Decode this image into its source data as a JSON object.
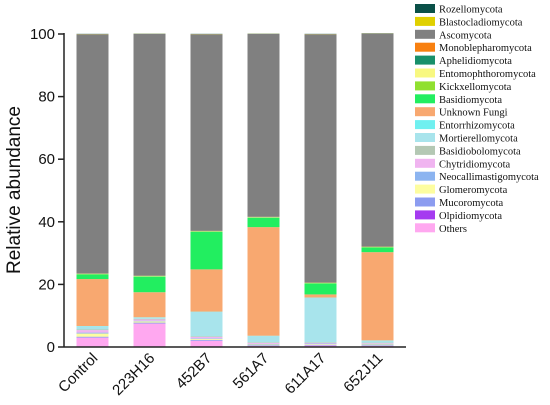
{
  "chart_data": {
    "type": "bar",
    "stacked": true,
    "ylabel": "Relative abundance",
    "xlabel": "",
    "ylim": [
      0,
      100
    ],
    "yticks": [
      0,
      20,
      40,
      60,
      80,
      100
    ],
    "categories": [
      "Control",
      "223H16",
      "452B7",
      "561A7",
      "611A17",
      "652J11"
    ],
    "legend_position": "right",
    "series": [
      {
        "name": "Others",
        "color": "#FFA8F0",
        "values": [
          3.0,
          7.5,
          2.0,
          0.4,
          0.5,
          0.4
        ]
      },
      {
        "name": "Olpidiomycota",
        "color": "#A53BF0",
        "values": [
          0,
          0,
          0,
          0,
          0,
          0
        ]
      },
      {
        "name": "Mucoromycota",
        "color": "#8C9CF0",
        "values": [
          0.3,
          0.3,
          0.3,
          0.2,
          0.2,
          0.2
        ]
      },
      {
        "name": "Glomeromycota",
        "color": "#FDFDA0",
        "values": [
          1.0,
          0.4,
          0.3,
          0.2,
          0.2,
          0.2
        ]
      },
      {
        "name": "Neocallimastigomycota",
        "color": "#8CB4F0",
        "values": [
          0.3,
          0.2,
          0.2,
          0.2,
          0.2,
          0.2
        ]
      },
      {
        "name": "Chytridiomycota",
        "color": "#F0B4F0",
        "values": [
          0.8,
          0.4,
          0.4,
          0.3,
          0.2,
          0.2
        ]
      },
      {
        "name": "Basidiobolomycota",
        "color": "#B4C8B4",
        "values": [
          0.2,
          0.2,
          0.2,
          0.2,
          0.2,
          0.2
        ]
      },
      {
        "name": "Mortierellomycota",
        "color": "#A8E4EC",
        "values": [
          1.0,
          0.4,
          7.8,
          2.0,
          14.2,
          0.6
        ]
      },
      {
        "name": "Entorrhizomycota",
        "color": "#70F0F0",
        "values": [
          0.1,
          0.1,
          0.1,
          0.1,
          0.1,
          0.1
        ]
      },
      {
        "name": "Unknown Fungi",
        "color": "#F8A870",
        "values": [
          15.0,
          8.0,
          13.5,
          34.7,
          1.0,
          28.2
        ]
      },
      {
        "name": "Basidiomycota",
        "color": "#22EE60",
        "values": [
          1.5,
          5.0,
          12.0,
          3.0,
          3.5,
          1.5
        ]
      },
      {
        "name": "Kickxellomycota",
        "color": "#90E030",
        "values": [
          0.1,
          0.1,
          0.1,
          0.1,
          0.1,
          0.1
        ]
      },
      {
        "name": "Entomophthoromycota",
        "color": "#F8F880",
        "values": [
          0.1,
          0.1,
          0.1,
          0.1,
          0.1,
          0.1
        ]
      },
      {
        "name": "Aphelidiomycota",
        "color": "#18906A",
        "values": [
          0.05,
          0.05,
          0.05,
          0.05,
          0.05,
          0.05
        ]
      },
      {
        "name": "Monoblepharomycota",
        "color": "#F88010",
        "values": [
          0.05,
          0.05,
          0.05,
          0.05,
          0.05,
          0.05
        ]
      },
      {
        "name": "Ascomycota",
        "color": "#808080",
        "values": [
          76.45,
          77.25,
          62.85,
          58.45,
          79.35,
          68.05
        ]
      },
      {
        "name": "Blastocladiomycota",
        "color": "#E0D000",
        "values": [
          0.05,
          0.05,
          0.05,
          0.05,
          0.05,
          0.05
        ]
      },
      {
        "name": "Rozellomycota",
        "color": "#0A5048",
        "values": [
          0.05,
          0.05,
          0.05,
          0.05,
          0.05,
          0.05
        ]
      }
    ],
    "legend_order": [
      "Rozellomycota",
      "Blastocladiomycota",
      "Ascomycota",
      "Monoblepharomycota",
      "Aphelidiomycota",
      "Entomophthoromycota",
      "Kickxellomycota",
      "Basidiomycota",
      "Unknown Fungi",
      "Entorrhizomycota",
      "Mortierellomycota",
      "Basidiobolomycota",
      "Chytridiomycota",
      "Neocallimastigomycota",
      "Glomeromycota",
      "Mucoromycota",
      "Olpidiomycota",
      "Others"
    ]
  }
}
